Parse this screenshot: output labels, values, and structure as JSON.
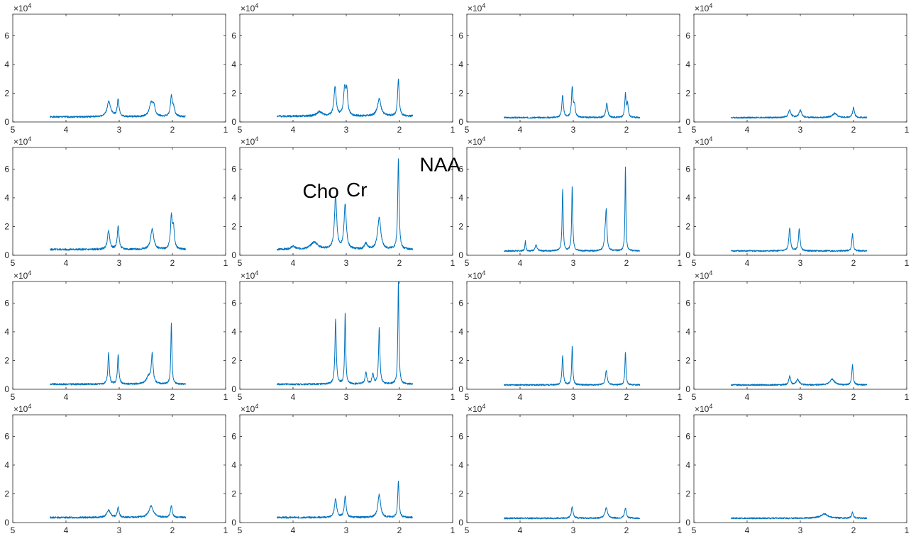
{
  "chart_data": {
    "type": "line",
    "layout": {
      "rows": 4,
      "cols": 4
    },
    "xlim": [
      5,
      1
    ],
    "xdir": "reverse",
    "ylim": [
      0,
      75000
    ],
    "xticks": [
      5,
      4,
      3,
      2,
      1
    ],
    "yticks": [
      0,
      20000,
      40000,
      60000
    ],
    "xtick_labels": [
      "5",
      "4",
      "3",
      "2",
      "1"
    ],
    "ytick_labels": [
      "0",
      "2",
      "4",
      "6"
    ],
    "y_exponent_label": "×10",
    "y_exponent_power": "4",
    "line_color": "#0072BD",
    "axes_color": "#262626",
    "grid": false,
    "baseline_x_range": [
      4.3,
      1.75
    ],
    "annotations": [
      {
        "panel": 5,
        "text": "Cho",
        "x": 3.82,
        "y": 40000
      },
      {
        "panel": 5,
        "text": "Cr",
        "x": 3.0,
        "y": 41000
      },
      {
        "panel": 5,
        "text": "NAA",
        "x": 1.62,
        "y": 58500
      }
    ],
    "panels": [
      {
        "baseline": 3500,
        "peaks": [
          {
            "ppm": 3.2,
            "height": 7000,
            "width": 0.03
          },
          {
            "ppm": 3.18,
            "height": 4000,
            "width": 0.06
          },
          {
            "ppm": 3.02,
            "height": 12000,
            "width": 0.02
          },
          {
            "ppm": 2.4,
            "height": 9000,
            "width": 0.04
          },
          {
            "ppm": 2.35,
            "height": 6000,
            "width": 0.03
          },
          {
            "ppm": 2.02,
            "height": 13000,
            "width": 0.02
          },
          {
            "ppm": 1.98,
            "height": 6000,
            "width": 0.03
          }
        ]
      },
      {
        "baseline": 4000,
        "peaks": [
          {
            "ppm": 3.21,
            "height": 20000,
            "width": 0.025
          },
          {
            "ppm": 3.03,
            "height": 18000,
            "width": 0.025
          },
          {
            "ppm": 2.99,
            "height": 16000,
            "width": 0.02
          },
          {
            "ppm": 2.38,
            "height": 12000,
            "width": 0.04
          },
          {
            "ppm": 2.02,
            "height": 26000,
            "width": 0.018
          },
          {
            "ppm": 3.5,
            "height": 3000,
            "width": 0.06
          }
        ]
      },
      {
        "baseline": 3000,
        "peaks": [
          {
            "ppm": 3.2,
            "height": 15000,
            "width": 0.018
          },
          {
            "ppm": 3.02,
            "height": 20000,
            "width": 0.016
          },
          {
            "ppm": 2.98,
            "height": 8000,
            "width": 0.02
          },
          {
            "ppm": 2.37,
            "height": 10000,
            "width": 0.02
          },
          {
            "ppm": 2.02,
            "height": 16000,
            "width": 0.015
          },
          {
            "ppm": 1.98,
            "height": 9000,
            "width": 0.015
          }
        ]
      },
      {
        "baseline": 3000,
        "peaks": [
          {
            "ppm": 3.2,
            "height": 5000,
            "width": 0.03
          },
          {
            "ppm": 3.0,
            "height": 5000,
            "width": 0.03
          },
          {
            "ppm": 2.35,
            "height": 3000,
            "width": 0.05
          },
          {
            "ppm": 2.0,
            "height": 7000,
            "width": 0.02
          }
        ]
      },
      {
        "baseline": 4000,
        "peaks": [
          {
            "ppm": 3.2,
            "height": 13000,
            "width": 0.025
          },
          {
            "ppm": 3.02,
            "height": 16000,
            "width": 0.02
          },
          {
            "ppm": 2.38,
            "height": 14000,
            "width": 0.035
          },
          {
            "ppm": 2.02,
            "height": 22000,
            "width": 0.02
          },
          {
            "ppm": 1.98,
            "height": 14000,
            "width": 0.02
          }
        ]
      },
      {
        "baseline": 4000,
        "peaks": [
          {
            "ppm": 3.2,
            "height": 37000,
            "width": 0.025
          },
          {
            "ppm": 3.02,
            "height": 31000,
            "width": 0.025
          },
          {
            "ppm": 2.63,
            "height": 4000,
            "width": 0.03
          },
          {
            "ppm": 2.38,
            "height": 22000,
            "width": 0.035
          },
          {
            "ppm": 2.02,
            "height": 63000,
            "width": 0.015
          },
          {
            "ppm": 3.6,
            "height": 5000,
            "width": 0.08
          },
          {
            "ppm": 4.0,
            "height": 2000,
            "width": 0.05
          }
        ]
      },
      {
        "baseline": 3000,
        "peaks": [
          {
            "ppm": 3.2,
            "height": 43000,
            "width": 0.012
          },
          {
            "ppm": 3.02,
            "height": 45000,
            "width": 0.012
          },
          {
            "ppm": 2.38,
            "height": 25000,
            "width": 0.015
          },
          {
            "ppm": 2.02,
            "height": 59000,
            "width": 0.01
          },
          {
            "ppm": 3.9,
            "height": 7000,
            "width": 0.01
          },
          {
            "ppm": 3.7,
            "height": 4000,
            "width": 0.02
          },
          {
            "ppm": 2.4,
            "height": 9000,
            "width": 0.02
          }
        ]
      },
      {
        "baseline": 3000,
        "peaks": [
          {
            "ppm": 3.2,
            "height": 16000,
            "width": 0.018
          },
          {
            "ppm": 3.02,
            "height": 15000,
            "width": 0.018
          },
          {
            "ppm": 2.02,
            "height": 12000,
            "width": 0.015
          }
        ]
      },
      {
        "baseline": 3500,
        "peaks": [
          {
            "ppm": 3.2,
            "height": 22000,
            "width": 0.015
          },
          {
            "ppm": 3.02,
            "height": 21000,
            "width": 0.015
          },
          {
            "ppm": 2.38,
            "height": 20000,
            "width": 0.02
          },
          {
            "ppm": 2.02,
            "height": 43000,
            "width": 0.012
          },
          {
            "ppm": 2.45,
            "height": 5000,
            "width": 0.05
          }
        ]
      },
      {
        "baseline": 3500,
        "peaks": [
          {
            "ppm": 3.2,
            "height": 45000,
            "width": 0.015
          },
          {
            "ppm": 3.02,
            "height": 50000,
            "width": 0.012
          },
          {
            "ppm": 2.63,
            "height": 8000,
            "width": 0.02
          },
          {
            "ppm": 2.5,
            "height": 7000,
            "width": 0.02
          },
          {
            "ppm": 2.38,
            "height": 39000,
            "width": 0.015
          },
          {
            "ppm": 2.02,
            "height": 72000,
            "width": 0.012
          }
        ]
      },
      {
        "baseline": 3000,
        "peaks": [
          {
            "ppm": 3.2,
            "height": 20000,
            "width": 0.015
          },
          {
            "ppm": 3.02,
            "height": 27000,
            "width": 0.012
          },
          {
            "ppm": 2.38,
            "height": 10000,
            "width": 0.02
          },
          {
            "ppm": 2.02,
            "height": 23000,
            "width": 0.012
          }
        ]
      },
      {
        "baseline": 3000,
        "peaks": [
          {
            "ppm": 3.2,
            "height": 6000,
            "width": 0.02
          },
          {
            "ppm": 3.05,
            "height": 4000,
            "width": 0.03
          },
          {
            "ppm": 2.4,
            "height": 4000,
            "width": 0.05
          },
          {
            "ppm": 2.02,
            "height": 14000,
            "width": 0.015
          }
        ]
      },
      {
        "baseline": 3500,
        "peaks": [
          {
            "ppm": 3.2,
            "height": 5000,
            "width": 0.04
          },
          {
            "ppm": 3.02,
            "height": 7000,
            "width": 0.02
          },
          {
            "ppm": 2.4,
            "height": 8000,
            "width": 0.05
          },
          {
            "ppm": 2.02,
            "height": 8000,
            "width": 0.02
          }
        ]
      },
      {
        "baseline": 3500,
        "peaks": [
          {
            "ppm": 3.2,
            "height": 13000,
            "width": 0.025
          },
          {
            "ppm": 3.02,
            "height": 15000,
            "width": 0.02
          },
          {
            "ppm": 2.38,
            "height": 16000,
            "width": 0.03
          },
          {
            "ppm": 2.02,
            "height": 25000,
            "width": 0.015
          }
        ]
      },
      {
        "baseline": 3000,
        "peaks": [
          {
            "ppm": 3.02,
            "height": 8000,
            "width": 0.02
          },
          {
            "ppm": 2.38,
            "height": 7000,
            "width": 0.03
          },
          {
            "ppm": 2.02,
            "height": 7000,
            "width": 0.02
          }
        ]
      },
      {
        "baseline": 3000,
        "peaks": [
          {
            "ppm": 2.55,
            "height": 3000,
            "width": 0.08
          },
          {
            "ppm": 2.02,
            "height": 4000,
            "width": 0.02
          }
        ]
      }
    ]
  }
}
